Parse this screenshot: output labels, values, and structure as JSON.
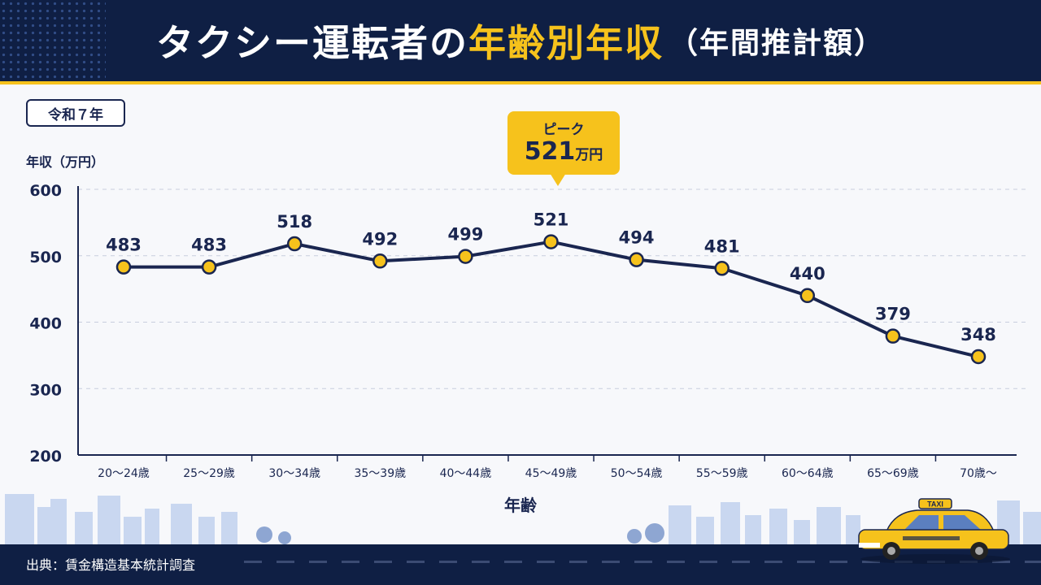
{
  "header": {
    "title_main": "タクシー運転者の",
    "title_highlight": "年齢別年収",
    "title_sub": "（年間推計額）"
  },
  "badge": "令和７年",
  "y_axis_label": "年収（万円）",
  "x_axis_label": "年齢",
  "peak_callout": {
    "label": "ピーク",
    "value": "521",
    "unit": "万円"
  },
  "source": "出典：賃金構造基本統計調査",
  "taxi_sign": "TAXI",
  "colors": {
    "navy": "#0f1f44",
    "accent": "#f6c21c",
    "line": "#1a2650",
    "marker": "#f6c21c"
  },
  "chart_data": {
    "type": "line",
    "title": "タクシー運転者の年齢別年収（年間推計額）",
    "xlabel": "年齢",
    "ylabel": "年収（万円）",
    "ylim": [
      200,
      600
    ],
    "yticks": [
      200,
      300,
      400,
      500,
      600
    ],
    "grid": true,
    "categories": [
      "20～24歳",
      "25～29歳",
      "30～34歳",
      "35～39歳",
      "40～44歳",
      "45～49歳",
      "50～54歳",
      "55～59歳",
      "60～64歳",
      "65～69歳",
      "70歳～"
    ],
    "series": [
      {
        "values": [
          483,
          483,
          518,
          492,
          499,
          521,
          494,
          481,
          440,
          379,
          348
        ]
      }
    ],
    "annotations": [
      {
        "category": "45～49歳",
        "text": "ピーク 521万円"
      }
    ]
  }
}
